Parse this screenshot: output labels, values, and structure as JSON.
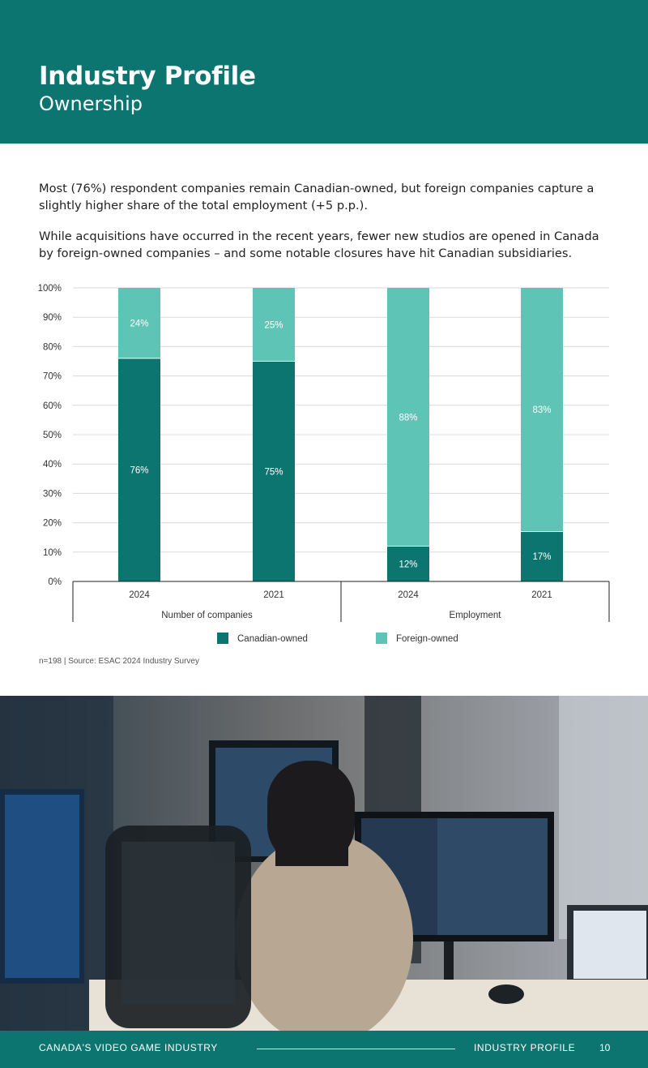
{
  "header": {
    "title": "Industry Profile",
    "subtitle": "Ownership"
  },
  "intro": {
    "p1": "Most (76%) respondent companies remain Canadian-owned, but foreign companies capture a slightly higher share of the total employment (+5 p.p.).",
    "p2": "While acquisitions have occurred in the recent years, fewer new studios are opened in Canada by foreign-owned companies – and some notable closures have hit Canadian subsidiaries."
  },
  "chart_data": {
    "type": "bar",
    "stacked": true,
    "categories": [
      "2024",
      "2021",
      "2024",
      "2021"
    ],
    "groups": [
      {
        "label": "Number of companies",
        "categories": [
          "2024",
          "2021"
        ]
      },
      {
        "label": "Employment",
        "categories": [
          "2024",
          "2021"
        ]
      }
    ],
    "series": [
      {
        "name": "Canadian-owned",
        "values": [
          76,
          75,
          12,
          17
        ],
        "labels": [
          "76%",
          "75%",
          "12%",
          "17%"
        ],
        "color": "#0d7570"
      },
      {
        "name": "Foreign-owned",
        "values": [
          24,
          25,
          88,
          83
        ],
        "labels": [
          "24%",
          "25%",
          "88%",
          "83%"
        ],
        "color": "#5ec4b6"
      }
    ],
    "yticks": [
      "0%",
      "10%",
      "20%",
      "30%",
      "40%",
      "50%",
      "60%",
      "70%",
      "80%",
      "90%",
      "100%"
    ],
    "ylim": [
      0,
      100
    ],
    "grid": true,
    "legend": "bottom"
  },
  "source": "n=198 | Source: ESAC 2024 Industry Survey",
  "footer": {
    "left": "CANADA'S VIDEO GAME INDUSTRY",
    "right": "INDUSTRY PROFILE",
    "page": "10"
  }
}
